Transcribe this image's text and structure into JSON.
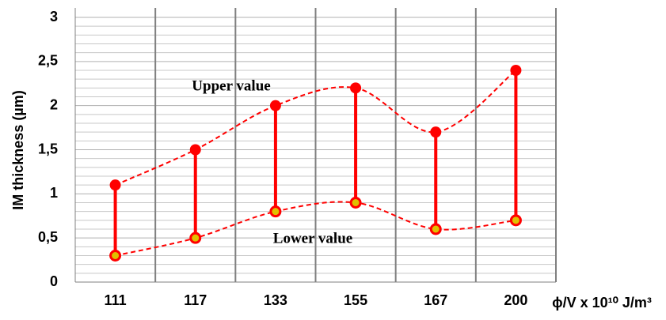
{
  "chart_data": {
    "type": "range",
    "y_label": "IM thickness  (µm)",
    "x_label": "ϕ/V x 10¹⁰ J/m³",
    "categories": [
      "111",
      "117",
      "133",
      "155",
      "167",
      "200"
    ],
    "series": [
      {
        "name": "Upper value",
        "color": "#ff0000",
        "values": [
          1.1,
          1.5,
          2.0,
          2.2,
          1.7,
          2.4
        ]
      },
      {
        "name": "Lower value",
        "color": "#ff0000",
        "values": [
          0.3,
          0.5,
          0.8,
          0.9,
          0.6,
          0.7
        ]
      }
    ],
    "ylim": [
      0,
      3
    ],
    "yticks": [
      0,
      {
        "value": 0.5,
        "label": "0,5"
      },
      1,
      {
        "value": 1.5,
        "label": "1,5"
      },
      2,
      {
        "value": 2.5,
        "label": "2,5"
      },
      3
    ],
    "grid": true,
    "minor_grid_divisions": 5
  }
}
